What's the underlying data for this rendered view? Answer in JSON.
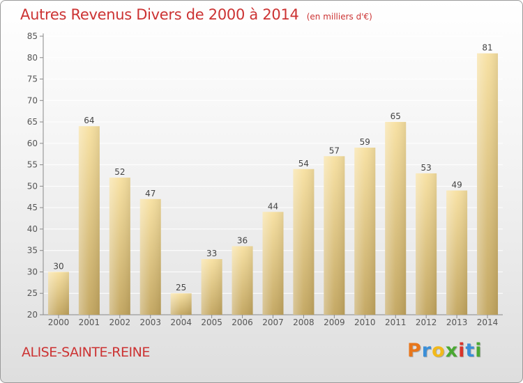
{
  "title": "Autres Revenus Divers de 2000 à 2014",
  "subtitle": "(en milliers d'€)",
  "location": "ALISE-SAINTE-REINE",
  "logo": [
    "P",
    "r",
    "o",
    "x",
    "i",
    "t",
    "i"
  ],
  "colors": {
    "title": "#cc3333",
    "bar_light": "#f7e0a0",
    "bar_dark": "#c2a55e",
    "axis": "#888888",
    "grid": "#ffffff"
  },
  "chart_data": {
    "type": "bar",
    "title": "Autres Revenus Divers de 2000 à 2014",
    "subtitle": "(en milliers d'€)",
    "categories": [
      "2000",
      "2001",
      "2002",
      "2003",
      "2004",
      "2005",
      "2006",
      "2007",
      "2008",
      "2009",
      "2010",
      "2011",
      "2012",
      "2013",
      "2014"
    ],
    "values": [
      30,
      64,
      52,
      47,
      25,
      33,
      36,
      44,
      54,
      57,
      59,
      65,
      53,
      49,
      81
    ],
    "ylim": [
      20,
      85
    ],
    "yticks": [
      20,
      25,
      30,
      35,
      40,
      45,
      50,
      55,
      60,
      65,
      70,
      75,
      80,
      85
    ],
    "grid": true,
    "data_labels": true
  }
}
